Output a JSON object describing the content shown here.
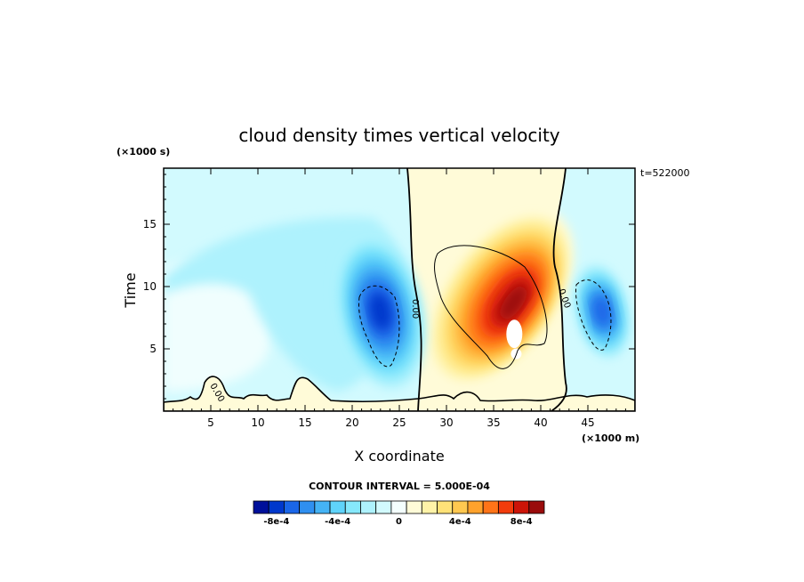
{
  "chart_data": {
    "type": "heatmap",
    "title": "cloud density times vertical velocity",
    "xlabel": "X coordinate",
    "ylabel": "Time",
    "x_unit": "(×1000 m)",
    "y_unit": "(×1000 s)",
    "annotation": "t=522000",
    "contour_interval_text": "CONTOUR INTERVAL = 5.000E-04",
    "zero_contour_label": "0.00",
    "xlim": [
      0,
      50
    ],
    "ylim": [
      0,
      19.5
    ],
    "x_ticks": [
      5,
      10,
      15,
      20,
      25,
      30,
      35,
      40,
      45
    ],
    "y_ticks": [
      5,
      10,
      15
    ],
    "colorbar": {
      "levels": [
        -0.0009,
        -0.0008,
        -0.0007,
        -0.0006,
        -0.0005,
        -0.0004,
        -0.0003,
        -0.0002,
        -0.0001,
        0,
        0.0001,
        0.0002,
        0.0003,
        0.0004,
        0.0005,
        0.0006,
        0.0007,
        0.0008,
        0.0009
      ],
      "colors": [
        "#00109a",
        "#0038cc",
        "#1a66e8",
        "#2f8ff0",
        "#45b3f5",
        "#5fd3fa",
        "#86e8fc",
        "#aef2fd",
        "#d2fafe",
        "#f4fffe",
        "#fffbd8",
        "#fff3a8",
        "#ffe278",
        "#ffc850",
        "#ffa22c",
        "#ff7418",
        "#f23c0c",
        "#cc1408",
        "#9a0c0c"
      ],
      "tick_labels": [
        "-8e-4",
        "-4e-4",
        "0",
        "4e-4",
        "8e-4"
      ],
      "tick_values": [
        -0.0008,
        -0.0004,
        0,
        0.0004,
        0.0008
      ]
    },
    "features": [
      {
        "name": "downdraft-left",
        "x": 23,
        "y": 8,
        "peak": -0.0009
      },
      {
        "name": "updraft-core",
        "x": 35.5,
        "y": 8.5,
        "peak": 0.0009
      },
      {
        "name": "downdraft-right",
        "x": 46.5,
        "y": 8,
        "peak": -0.0007
      }
    ]
  }
}
